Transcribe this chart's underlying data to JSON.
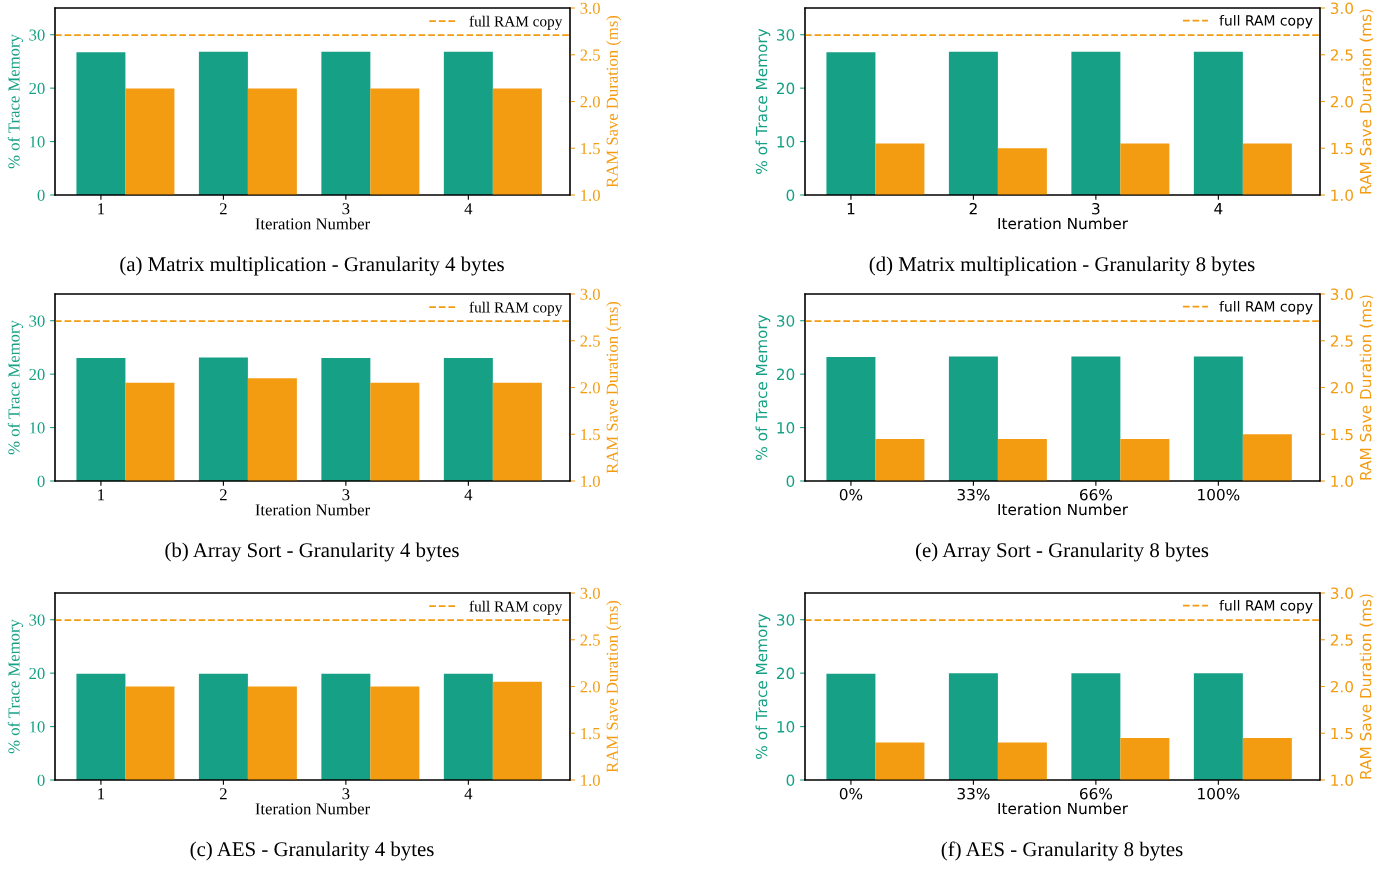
{
  "chart_data": [
    {
      "type": "bar",
      "title": "(a) Matrix multiplication - Granularity 4 bytes",
      "xlabel": "Iteration Number",
      "ylabel": "% of Trace Memory",
      "y2label": "RAM Save Duration (ms)",
      "categories": [
        "1",
        "2",
        "3",
        "4"
      ],
      "series": [
        {
          "color": "#16a085",
          "values": [
            26.7,
            26.8,
            26.8,
            26.8
          ]
        },
        {
          "color": "#f39c12",
          "axis": "y2",
          "values": [
            2.14,
            2.14,
            2.14,
            2.14
          ]
        }
      ],
      "ylim": [
        0,
        35
      ],
      "yticks": [
        0,
        10,
        20,
        30
      ],
      "y2lim": [
        1.0,
        3.0
      ],
      "y2ticks": [
        {
          "value": 1.0,
          "label": "1.0"
        },
        {
          "value": 1.5,
          "label": "1.5"
        },
        {
          "value": 2.0,
          "label": "2.0"
        },
        {
          "value": 2.5,
          "label": "2.5"
        },
        {
          "value": 3.0,
          "label": "3.0"
        }
      ],
      "ref_lines": [
        {
          "axis": "y2",
          "value": 2.71,
          "label": "full RAM copy",
          "color": "#f39c12",
          "line_style": "dashed"
        }
      ],
      "legend": "top right"
    },
    {
      "type": "bar",
      "title": "(d) Matrix multiplication - Granularity 8 bytes",
      "xlabel": "Iteration Number",
      "ylabel": "% of Trace Memory",
      "y2label": "RAM Save Duration (ms)",
      "categories": [
        "1",
        "2",
        "3",
        "4"
      ],
      "series": [
        {
          "color": "#16a085",
          "values": [
            26.7,
            26.8,
            26.8,
            26.8
          ]
        },
        {
          "color": "#f39c12",
          "axis": "y2",
          "values": [
            1.55,
            1.5,
            1.55,
            1.55
          ]
        }
      ],
      "ylim": [
        0,
        35
      ],
      "yticks": [
        0,
        10,
        20,
        30
      ],
      "y2lim": [
        1.0,
        3.0
      ],
      "y2ticks": [
        {
          "value": 1.0,
          "label": "1.0"
        },
        {
          "value": 1.5,
          "label": "1.5"
        },
        {
          "value": 2.0,
          "label": "2.0"
        },
        {
          "value": 2.5,
          "label": "2.5"
        },
        {
          "value": 3.0,
          "label": "3.0"
        }
      ],
      "ref_lines": [
        {
          "axis": "y2",
          "value": 2.71,
          "label": "full RAM copy",
          "color": "#f39c12",
          "line_style": "dashed"
        }
      ],
      "legend": "top right"
    },
    {
      "type": "bar",
      "title": "(b) Array Sort - Granularity 4 bytes",
      "xlabel": "Iteration Number",
      "ylabel": "% of Trace Memory",
      "y2label": "RAM Save Duration (ms)",
      "categories": [
        "1",
        "2",
        "3",
        "4"
      ],
      "series": [
        {
          "color": "#16a085",
          "values": [
            23.0,
            23.1,
            23.0,
            23.0
          ]
        },
        {
          "color": "#f39c12",
          "axis": "y2",
          "values": [
            2.05,
            2.1,
            2.05,
            2.05
          ]
        }
      ],
      "ylim": [
        0,
        35
      ],
      "yticks": [
        0,
        10,
        20,
        30
      ],
      "y2lim": [
        1.0,
        3.0
      ],
      "y2ticks": [
        {
          "value": 1.0,
          "label": "1.0"
        },
        {
          "value": 1.5,
          "label": "1.5"
        },
        {
          "value": 2.0,
          "label": "2.0"
        },
        {
          "value": 2.5,
          "label": "2.5"
        },
        {
          "value": 3.0,
          "label": "3.0"
        }
      ],
      "ref_lines": [
        {
          "axis": "y2",
          "value": 2.71,
          "label": "full RAM copy",
          "color": "#f39c12",
          "line_style": "dashed"
        }
      ],
      "legend": "top right"
    },
    {
      "type": "bar",
      "title": "(e) Array Sort - Granularity 8 bytes",
      "xlabel": "Iteration Number",
      "ylabel": "% of Trace Memory",
      "y2label": "RAM Save Duration (ms)",
      "categories": [
        "0%",
        "33%",
        "66%",
        "100%"
      ],
      "series": [
        {
          "color": "#16a085",
          "values": [
            23.2,
            23.3,
            23.3,
            23.3
          ]
        },
        {
          "color": "#f39c12",
          "axis": "y2",
          "values": [
            1.45,
            1.45,
            1.45,
            1.5
          ]
        }
      ],
      "ylim": [
        0,
        35
      ],
      "yticks": [
        0,
        10,
        20,
        30
      ],
      "y2lim": [
        1.0,
        3.0
      ],
      "y2ticks": [
        {
          "value": 1.0,
          "label": "1.0"
        },
        {
          "value": 1.5,
          "label": "1.5"
        },
        {
          "value": 2.0,
          "label": "2.0"
        },
        {
          "value": 2.5,
          "label": "2.5"
        },
        {
          "value": 3.0,
          "label": "3.0"
        }
      ],
      "ref_lines": [
        {
          "axis": "y2",
          "value": 2.71,
          "label": "full RAM copy",
          "color": "#f39c12",
          "line_style": "dashed"
        }
      ],
      "legend": "top right"
    },
    {
      "type": "bar",
      "title": "(c) AES - Granularity 4 bytes",
      "xlabel": "Iteration Number",
      "ylabel": "% of Trace Memory",
      "y2label": "RAM Save Duration (ms)",
      "categories": [
        "1",
        "2",
        "3",
        "4"
      ],
      "series": [
        {
          "color": "#16a085",
          "values": [
            19.9,
            19.9,
            19.9,
            19.9
          ]
        },
        {
          "color": "#f39c12",
          "axis": "y2",
          "values": [
            2.0,
            2.0,
            2.0,
            2.05
          ]
        }
      ],
      "ylim": [
        0,
        35
      ],
      "yticks": [
        0,
        10,
        20,
        30
      ],
      "y2lim": [
        1.0,
        3.0
      ],
      "y2ticks": [
        {
          "value": 1.0,
          "label": "1.0"
        },
        {
          "value": 1.5,
          "label": "1.5"
        },
        {
          "value": 2.0,
          "label": "2.0"
        },
        {
          "value": 2.5,
          "label": "2.5"
        },
        {
          "value": 3.0,
          "label": "3.0"
        }
      ],
      "ref_lines": [
        {
          "axis": "y2",
          "value": 2.71,
          "label": "full RAM copy",
          "color": "#f39c12",
          "line_style": "dashed"
        }
      ],
      "legend": "top right"
    },
    {
      "type": "bar",
      "title": "(f) AES - Granularity 8 bytes",
      "xlabel": "Iteration Number",
      "ylabel": "% of Trace Memory",
      "y2label": "RAM Save Duration (ms)",
      "categories": [
        "0%",
        "33%",
        "66%",
        "100%"
      ],
      "series": [
        {
          "color": "#16a085",
          "values": [
            19.9,
            20.0,
            20.0,
            20.0
          ]
        },
        {
          "color": "#f39c12",
          "axis": "y2",
          "values": [
            1.4,
            1.4,
            1.45,
            1.45
          ]
        }
      ],
      "ylim": [
        0,
        35
      ],
      "yticks": [
        0,
        10,
        20,
        30
      ],
      "y2lim": [
        1.0,
        3.0
      ],
      "y2ticks": [
        {
          "value": 1.0,
          "label": "1.0"
        },
        {
          "value": 1.5,
          "label": "1.5"
        },
        {
          "value": 2.0,
          "label": "2.0"
        },
        {
          "value": 2.5,
          "label": "2.5"
        },
        {
          "value": 3.0,
          "label": "3.0"
        }
      ],
      "ref_lines": [
        {
          "axis": "y2",
          "value": 2.71,
          "label": "full RAM copy",
          "color": "#f39c12",
          "line_style": "dashed"
        }
      ],
      "legend": "top right"
    }
  ]
}
